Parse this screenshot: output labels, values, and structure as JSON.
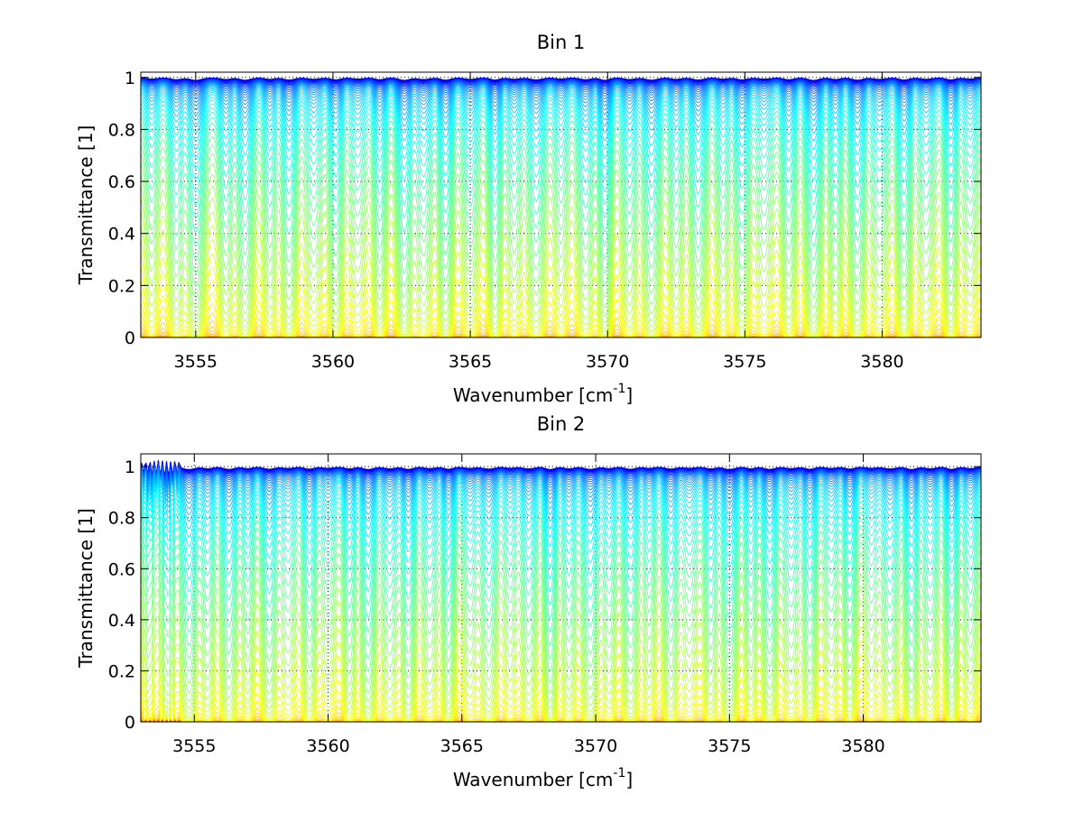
{
  "chart_data": [
    {
      "type": "line",
      "title": "Bin 1",
      "xlabel": "Wavenumber [cm",
      "xlabel_sup": "-1",
      "xlabel_end": "]",
      "ylabel": "Transmittance [1]",
      "xlim": [
        3553,
        3583.6
      ],
      "ylim": [
        0,
        1.02
      ],
      "xticks": [
        3555,
        3560,
        3565,
        3570,
        3575,
        3580
      ],
      "xtick_labels": [
        "3555",
        "3560",
        "3565",
        "3570",
        "3575",
        "3580"
      ],
      "yticks": [
        0,
        0.2,
        0.4,
        0.6,
        0.8,
        1
      ],
      "ytick_labels": [
        "0",
        "0.2",
        "0.4",
        "0.6",
        "0.8",
        "1"
      ],
      "grid": true,
      "colormap": "jet",
      "series_count": 70,
      "absorption_lines_cm-1": [
        3553.4,
        3554.3,
        3555.0,
        3556.1,
        3556.8,
        3557.7,
        3558.4,
        3559.3,
        3560.1,
        3560.9,
        3561.7,
        3562.6,
        3563.3,
        3564.1,
        3565.0,
        3565.9,
        3566.6,
        3567.4,
        3568.3,
        3569.2,
        3569.9,
        3570.8,
        3571.6,
        3572.5,
        3573.3,
        3574.2,
        3574.9,
        3575.7,
        3576.6,
        3577.5,
        3578.3,
        3579.1,
        3579.9,
        3580.8,
        3581.6,
        3582.5,
        3583.2
      ]
    },
    {
      "type": "line",
      "title": "Bin 2",
      "xlabel": "Wavenumber [cm",
      "xlabel_sup": "-1",
      "xlabel_end": "]",
      "ylabel": "Transmittance [1]",
      "xlim": [
        3553,
        3584.4
      ],
      "ylim": [
        0,
        1.05
      ],
      "xticks": [
        3555,
        3560,
        3565,
        3570,
        3575,
        3580
      ],
      "xtick_labels": [
        "3555",
        "3560",
        "3565",
        "3570",
        "3575",
        "3580"
      ],
      "yticks": [
        0,
        0.2,
        0.4,
        0.6,
        0.8,
        1
      ],
      "ytick_labels": [
        "0",
        "0.2",
        "0.4",
        "0.6",
        "0.8",
        "1"
      ],
      "grid": true,
      "colormap": "jet",
      "series_count": 70,
      "absorption_lines_cm-1": [
        3553.3,
        3554.0,
        3554.8,
        3555.5,
        3556.3,
        3557.0,
        3557.8,
        3558.5,
        3559.3,
        3560.0,
        3560.8,
        3561.5,
        3562.3,
        3563.0,
        3563.8,
        3564.5,
        3565.3,
        3566.0,
        3566.8,
        3567.5,
        3568.3,
        3569.0,
        3569.8,
        3570.5,
        3571.3,
        3572.0,
        3572.8,
        3573.5,
        3574.3,
        3575.0,
        3575.8,
        3576.5,
        3577.3,
        3578.0,
        3578.8,
        3579.5,
        3580.3,
        3581.0,
        3581.8,
        3582.5,
        3583.3,
        3584.0
      ]
    }
  ]
}
